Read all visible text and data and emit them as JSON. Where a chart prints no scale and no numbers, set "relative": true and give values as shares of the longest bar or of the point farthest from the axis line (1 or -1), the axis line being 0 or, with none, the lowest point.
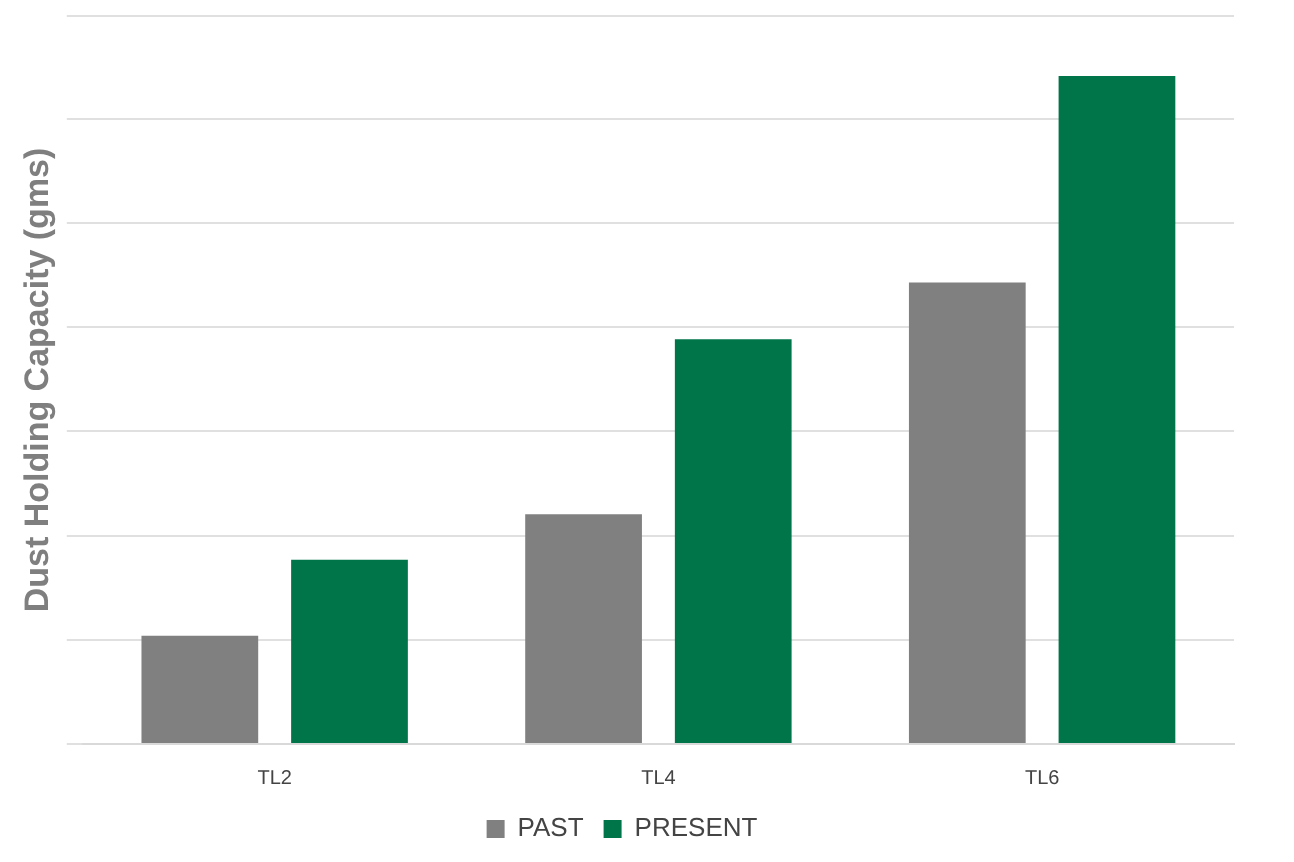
{
  "chart_data": {
    "type": "bar",
    "ylabel": "Dust Holding Capacity (gms)",
    "categories": [
      "TL2",
      "TL4",
      "TL6"
    ],
    "relative": true,
    "grid": "y",
    "legend": "bottom",
    "series": [
      {
        "name": "PAST",
        "color": "#808080",
        "values": [
          0.162,
          0.344,
          0.691
        ]
      },
      {
        "name": "PRESENT",
        "color": "#00754a",
        "values": [
          0.276,
          0.606,
          1
        ]
      }
    ]
  }
}
